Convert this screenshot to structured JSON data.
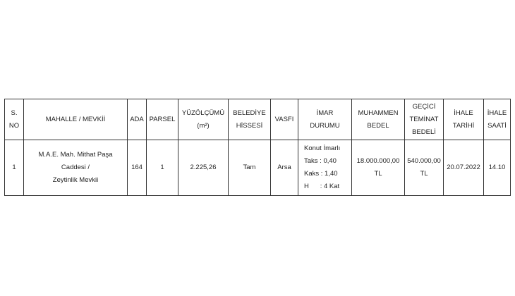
{
  "headers": {
    "s_no": [
      "S.",
      "NO"
    ],
    "mahalle": "MAHALLE / MEVKİİ",
    "ada": "ADA",
    "parsel": "PARSEL",
    "yuzolcumu": [
      "YÜZÖLÇÜMÜ",
      "(m²)"
    ],
    "belediye": [
      "BELEDİYE",
      "HİSSESİ"
    ],
    "vasfi": "VASFI",
    "imar": [
      "İMAR",
      "DURUMU"
    ],
    "muhammen": [
      "MUHAMMEN",
      "BEDEL"
    ],
    "gecici": [
      "GEÇİCİ",
      "TEMİNAT",
      "BEDELİ"
    ],
    "tarih": [
      "İHALE",
      "TARİHİ"
    ],
    "saat": [
      "İHALE",
      "SAATİ"
    ]
  },
  "rows": [
    {
      "s_no": "1",
      "mahalle": [
        "M.A.E. Mah. Mithat Paşa Caddesi /",
        "Zeytinlik Mevkii"
      ],
      "ada": "164",
      "parsel": "1",
      "yuzolcumu": "2.225,26",
      "belediye": "Tam",
      "vasfi": "Arsa",
      "imar": [
        "Konut İmarlı",
        "Taks : 0,40",
        "Kaks : 1,40",
        "H      : 4 Kat"
      ],
      "muhammen": [
        "18.000.000,00",
        "TL"
      ],
      "gecici": [
        "540.000,00",
        "TL"
      ],
      "tarih": "20.07.2022",
      "saat": "14.10"
    }
  ]
}
